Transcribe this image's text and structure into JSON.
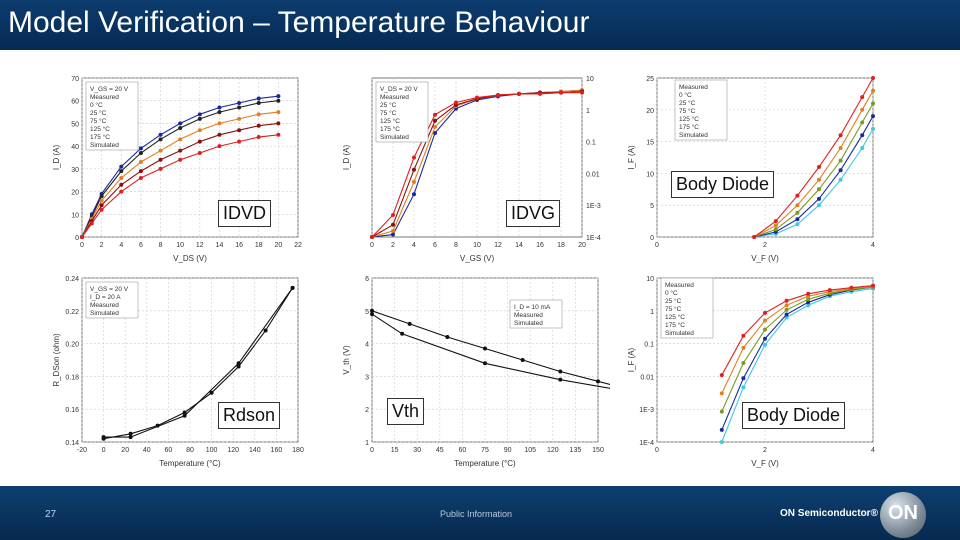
{
  "slide": {
    "title": "Model Verification – Temperature Behaviour",
    "page_number": "27",
    "footer_text": "Public Information",
    "brand": "ON Semiconductor®",
    "logo_text": "ON"
  },
  "labels": {
    "idvd": "IDVD",
    "idvg": "IDVG",
    "body_top": "Body Diode",
    "rdson": "Rdson",
    "vth": "Vth",
    "body_bottom": "Body Diode"
  },
  "chart_data": [
    {
      "id": "idvd",
      "type": "line",
      "xlabel": "V_DS (V)",
      "ylabel": "I_D (A)",
      "xlim": [
        0,
        22
      ],
      "ylim": [
        0,
        70
      ],
      "xticks": [
        "0",
        "2",
        "4",
        "6",
        "8",
        "10",
        "12",
        "14",
        "16",
        "18",
        "20",
        "22"
      ],
      "yticks": [
        "0",
        "10",
        "20",
        "30",
        "40",
        "50",
        "60",
        "70"
      ],
      "legend": [
        "V_GS = 20 V",
        "Measured",
        "0 °C",
        "25 °C",
        "75 °C",
        "125 °C",
        "175 °C",
        "Simulated"
      ],
      "x": [
        0,
        1,
        2,
        4,
        6,
        8,
        10,
        12,
        14,
        16,
        18,
        20
      ],
      "series": [
        {
          "name": "0 °C",
          "color": "#1a2a9c",
          "values": [
            0,
            10,
            19,
            31,
            39,
            45,
            50,
            54,
            57,
            59,
            61,
            62
          ]
        },
        {
          "name": "25 °C",
          "color": "#222222",
          "values": [
            0,
            9,
            18,
            29,
            37,
            43,
            48,
            52,
            55,
            57,
            59,
            60
          ]
        },
        {
          "name": "75 °C",
          "color": "#e08020",
          "values": [
            0,
            8,
            16,
            26,
            33,
            38,
            43,
            47,
            50,
            52,
            54,
            55
          ]
        },
        {
          "name": "125 °C",
          "color": "#8a1010",
          "values": [
            0,
            7,
            14,
            23,
            29,
            34,
            38,
            42,
            45,
            47,
            49,
            50
          ]
        },
        {
          "name": "175 °C",
          "color": "#e02020",
          "values": [
            0,
            6,
            12,
            20,
            26,
            30,
            34,
            37,
            40,
            42,
            44,
            45
          ]
        }
      ]
    },
    {
      "id": "idvg",
      "type": "line",
      "xlabel": "V_GS (V)",
      "ylabel": "I_D (A)",
      "xlim": [
        0,
        20
      ],
      "xticks": [
        "0",
        "2",
        "4",
        "6",
        "8",
        "10",
        "12",
        "14",
        "16",
        "18",
        "20"
      ],
      "yticks_right": [
        "10",
        "1",
        "0.1",
        "0.01",
        "1E-3",
        "1E-4"
      ],
      "legend": [
        "V_DS = 20 V",
        "Measured",
        "25 °C",
        "75 °C",
        "125 °C",
        "175 °C",
        "Simulated"
      ],
      "x": [
        0,
        2,
        4,
        6,
        8,
        10,
        12,
        14,
        16,
        18,
        20
      ],
      "series": [
        {
          "name": "25 °C",
          "color": "#1a2a9c",
          "values": [
            0,
            0.02,
            0.35,
            0.85,
            1.05,
            1.12,
            1.15,
            1.17,
            1.18,
            1.19,
            1.2
          ]
        },
        {
          "name": "75 °C",
          "color": "#e08020",
          "values": [
            0,
            0.05,
            0.45,
            0.9,
            1.07,
            1.13,
            1.16,
            1.17,
            1.18,
            1.19,
            1.2
          ]
        },
        {
          "name": "125 °C",
          "color": "#8a1010",
          "values": [
            0,
            0.1,
            0.55,
            0.95,
            1.08,
            1.13,
            1.16,
            1.17,
            1.18,
            1.18,
            1.19
          ]
        },
        {
          "name": "175 °C",
          "color": "#e02020",
          "values": [
            0,
            0.18,
            0.65,
            1.0,
            1.1,
            1.14,
            1.16,
            1.17,
            1.17,
            1.18,
            1.18
          ]
        }
      ]
    },
    {
      "id": "body_diode_lin",
      "type": "line",
      "xlabel": "V_F (V)",
      "ylabel": "I_F (A)",
      "xlim": [
        0,
        4
      ],
      "ylim": [
        0,
        25
      ],
      "xticks": [
        "0",
        "2",
        "4"
      ],
      "yticks": [
        "0",
        "5",
        "10",
        "15",
        "20",
        "25"
      ],
      "legend": [
        "Measured",
        "0 °C",
        "25 °C",
        "75 °C",
        "125 °C",
        "175 °C",
        "Simulated"
      ],
      "x": [
        1.8,
        2.2,
        2.6,
        3.0,
        3.4,
        3.8,
        4.0
      ],
      "series": [
        {
          "name": "0 °C",
          "color": "#40c8e0",
          "values": [
            0,
            0.5,
            2,
            5,
            9,
            14,
            17
          ]
        },
        {
          "name": "25 °C",
          "color": "#1a2a9c",
          "values": [
            0,
            0.8,
            2.8,
            6,
            10.5,
            16,
            19
          ]
        },
        {
          "name": "75 °C",
          "color": "#7a9a20",
          "values": [
            0,
            1.2,
            3.8,
            7.5,
            12,
            18,
            21
          ]
        },
        {
          "name": "125 °C",
          "color": "#e08020",
          "values": [
            0,
            1.8,
            5,
            9,
            14,
            20,
            23
          ]
        },
        {
          "name": "175 °C",
          "color": "#e02020",
          "values": [
            0,
            2.5,
            6.5,
            11,
            16,
            22,
            25
          ]
        }
      ]
    },
    {
      "id": "rdson",
      "type": "line",
      "xlabel": "Temperature (°C)",
      "ylabel": "R_DSon (ohm)",
      "xlim": [
        -20,
        180
      ],
      "ylim": [
        0.14,
        0.24
      ],
      "xticks": [
        "-20",
        "0",
        "20",
        "40",
        "60",
        "80",
        "100",
        "120",
        "140",
        "160",
        "180"
      ],
      "yticks": [
        "0.14",
        "0.16",
        "0.18",
        "0.20",
        "0.22",
        "0.24"
      ],
      "legend": [
        "V_GS = 20 V",
        "I_D = 20 A",
        "Measured",
        "Simulated"
      ],
      "series": [
        {
          "name": "Measured",
          "color": "#111111",
          "x": [
            0,
            25,
            75,
            125,
            175
          ],
          "values": [
            0.143,
            0.143,
            0.156,
            0.188,
            0.234
          ]
        },
        {
          "name": "Simulated",
          "color": "#111111",
          "x": [
            0,
            25,
            50,
            75,
            100,
            125,
            150,
            175
          ],
          "values": [
            0.142,
            0.145,
            0.15,
            0.158,
            0.17,
            0.186,
            0.208,
            0.234
          ]
        }
      ]
    },
    {
      "id": "vth",
      "type": "line",
      "xlabel": "Temperature (°C)",
      "ylabel": "V_th (V)",
      "xlim": [
        0,
        150
      ],
      "ylim": [
        1,
        6
      ],
      "xticks": [
        "0",
        "15",
        "30",
        "45",
        "60",
        "75",
        "90",
        "105",
        "120",
        "135",
        "150"
      ],
      "yticks": [
        "1",
        "2",
        "3",
        "4",
        "5",
        "6"
      ],
      "legend": [
        "I_D = 10 mA",
        "Measured",
        "Simulated"
      ],
      "series": [
        {
          "name": "Measured",
          "color": "#111111",
          "x": [
            0,
            20,
            75,
            125,
            175
          ],
          "values": [
            4.9,
            4.3,
            3.4,
            2.9,
            2.5
          ]
        },
        {
          "name": "Simulated",
          "color": "#111111",
          "x": [
            0,
            25,
            50,
            75,
            100,
            125,
            150,
            175
          ],
          "values": [
            5.0,
            4.6,
            4.2,
            3.85,
            3.5,
            3.15,
            2.85,
            2.55
          ]
        }
      ]
    },
    {
      "id": "body_diode_log",
      "type": "line",
      "xlabel": "V_F (V)",
      "ylabel": "I_F (A)",
      "xlim": [
        0,
        4
      ],
      "xticks": [
        "0",
        "2",
        "4"
      ],
      "yticks": [
        "1E-4",
        "1E-3",
        "0.01",
        "0.1",
        "1",
        "10"
      ],
      "legend": [
        "Measured",
        "0 °C",
        "25 °C",
        "75 °C",
        "125 °C",
        "175 °C",
        "Simulated"
      ],
      "x": [
        1.2,
        1.6,
        2.0,
        2.4,
        2.8,
        3.2,
        3.6,
        4.0
      ],
      "series": [
        {
          "name": "0 °C",
          "color": "#40c8e0",
          "values": [
            -4,
            -2.2,
            -0.8,
            0.1,
            0.5,
            0.8,
            0.95,
            1.05
          ]
        },
        {
          "name": "25 °C",
          "color": "#1a2a9c",
          "values": [
            -3.6,
            -1.9,
            -0.6,
            0.2,
            0.6,
            0.85,
            1.0,
            1.1
          ]
        },
        {
          "name": "75 °C",
          "color": "#7a9a20",
          "values": [
            -3.0,
            -1.4,
            -0.3,
            0.35,
            0.7,
            0.9,
            1.02,
            1.1
          ]
        },
        {
          "name": "125 °C",
          "color": "#e08020",
          "values": [
            -2.4,
            -0.9,
            0.0,
            0.5,
            0.8,
            0.95,
            1.05,
            1.12
          ]
        },
        {
          "name": "175 °C",
          "color": "#e02020",
          "values": [
            -1.8,
            -0.5,
            0.25,
            0.65,
            0.88,
            1.0,
            1.08,
            1.15
          ]
        }
      ]
    }
  ]
}
